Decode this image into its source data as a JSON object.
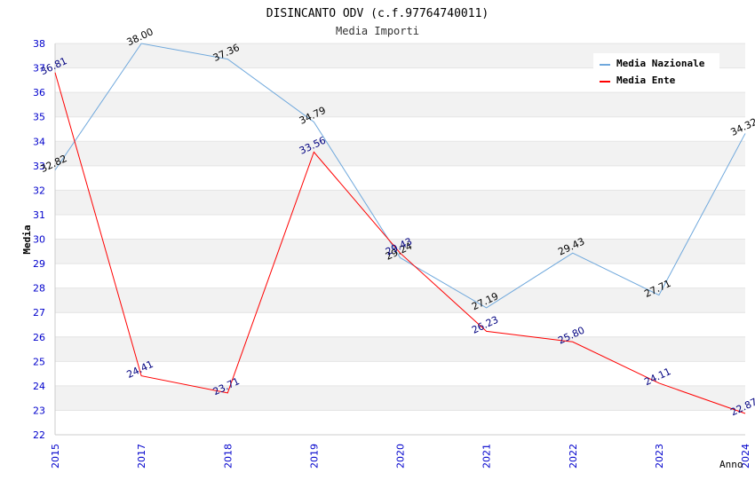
{
  "chart_data": {
    "type": "line",
    "title": "DISINCANTO ODV (c.f.97764740011)",
    "subtitle": "Media Importi",
    "xlabel": "Anno",
    "ylabel": "Media",
    "categories": [
      "2015",
      "2017",
      "2018",
      "2019",
      "2020",
      "2021",
      "2022",
      "2023",
      "2024"
    ],
    "ylim": [
      22,
      38
    ],
    "yticks": [
      22,
      23,
      24,
      25,
      26,
      27,
      28,
      29,
      30,
      31,
      32,
      33,
      34,
      35,
      36,
      37,
      38
    ],
    "series": [
      {
        "name": "Media Nazionale",
        "color": "#6fa8dc",
        "label_color": "#000000",
        "values": [
          32.82,
          38.0,
          37.36,
          34.79,
          29.24,
          27.19,
          29.43,
          27.71,
          34.32
        ],
        "labels": [
          "32.82",
          "38.00",
          "37.36",
          "34.79",
          "29.24",
          "27.19",
          "29.43",
          "27.71",
          "34.32"
        ]
      },
      {
        "name": "Media Ente",
        "color": "#ff0000",
        "label_color": "#000080",
        "values": [
          36.81,
          24.41,
          23.71,
          33.56,
          29.43,
          26.23,
          25.8,
          24.11,
          22.87
        ],
        "labels": [
          "36.81",
          "24.41",
          "23.71",
          "33.56",
          "29.43",
          "26.23",
          "25.80",
          "24.11",
          "22.87"
        ]
      }
    ],
    "legend_position": "top-right",
    "grid": true
  }
}
